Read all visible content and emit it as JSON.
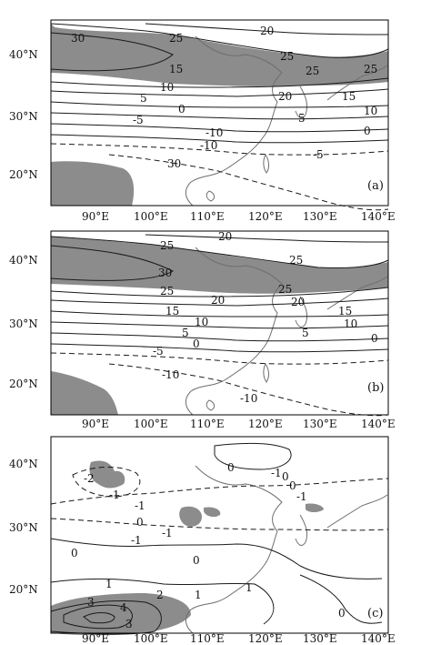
{
  "panels": [
    {
      "label": "(a)",
      "lat_ticks": [
        "40°N",
        "30°N",
        "20°N"
      ],
      "lon_ticks": [
        "90°E",
        "100°E",
        "110°E",
        "120°E",
        "130°E",
        "140°E"
      ],
      "contours": [
        "30",
        "25",
        "20",
        "25",
        "15",
        "10",
        "5",
        "0",
        "-5",
        "-10",
        "30",
        "25",
        "20",
        "25",
        "15",
        "10",
        "5",
        "0",
        "-5",
        "-10"
      ]
    },
    {
      "label": "(b)",
      "lat_ticks": [
        "40°N",
        "30°N",
        "20°N"
      ],
      "lon_ticks": [
        "90°E",
        "100°E",
        "110°E",
        "120°E",
        "130°E",
        "140°E"
      ],
      "contours": [
        "25",
        "20",
        "30",
        "25",
        "25",
        "20",
        "15",
        "10",
        "5",
        "0",
        "-5",
        "-10",
        "25",
        "20",
        "15",
        "10",
        "5",
        "0",
        "-10"
      ]
    },
    {
      "label": "(c)",
      "lat_ticks": [
        "40°N",
        "30°N",
        "20°N"
      ],
      "lon_ticks": [
        "90°E",
        "100°E",
        "110°E",
        "120°E",
        "130°E",
        "140°E"
      ],
      "contours": [
        "0",
        "-2",
        "-1",
        "0",
        "-1",
        "0",
        "-1",
        "-1",
        "0",
        "-1",
        "0",
        "-1",
        "0",
        "1",
        "3",
        "4",
        "2",
        "3",
        "1",
        "1",
        "0"
      ]
    }
  ],
  "colors": {
    "shade": "#8c8c8c",
    "line": "#1a1a1a",
    "coast": "#6e6e6e"
  }
}
